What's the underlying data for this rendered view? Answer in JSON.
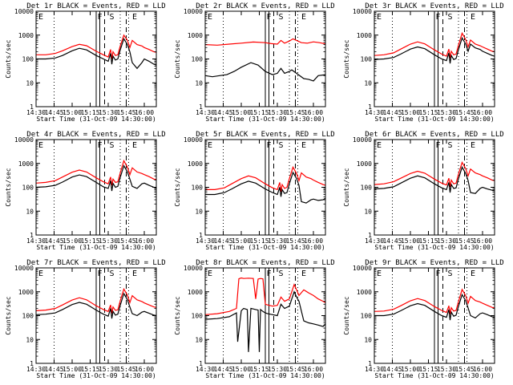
{
  "figure": {
    "x_tick_labels": [
      "14:30",
      "14:45",
      "15:00",
      "15:15",
      "15:30",
      "15:45",
      "16:00"
    ],
    "y_tick_labels": [
      "1",
      "10",
      "100",
      "1000",
      "10000"
    ],
    "xlabel": "Start Time (31-Oct-09 14:30:00)",
    "ylabel": "Counts/sec",
    "marker_labels": [
      "E",
      "F",
      "S",
      "E"
    ],
    "colors": {
      "events": "#000000",
      "lld": "#ff0000"
    }
  },
  "chart_data": [
    {
      "type": "line",
      "title": "Det 1r BLACK = Events, RED = LLD",
      "ylim": [
        1,
        10000
      ],
      "yscale": "log",
      "xlim_min": [
        0,
        100
      ],
      "series": [
        {
          "name": "LLD",
          "x": [
            0,
            8,
            16,
            22,
            30,
            36,
            42,
            50,
            56,
            60,
            62,
            63,
            64,
            66,
            68,
            70,
            73,
            76,
            78,
            80,
            84,
            88,
            90,
            94,
            98,
            100
          ],
          "values": [
            150,
            150,
            170,
            220,
            330,
            410,
            360,
            210,
            150,
            120,
            250,
            100,
            200,
            140,
            150,
            350,
            1000,
            600,
            300,
            600,
            400,
            350,
            300,
            250,
            200,
            190
          ]
        },
        {
          "name": "Events",
          "x": [
            0,
            8,
            16,
            22,
            30,
            36,
            42,
            50,
            56,
            60,
            62,
            63,
            64,
            66,
            68,
            70,
            73,
            76,
            78,
            80,
            84,
            88,
            90,
            94,
            98,
            100
          ],
          "values": [
            100,
            100,
            110,
            140,
            220,
            280,
            240,
            140,
            100,
            80,
            170,
            60,
            130,
            90,
            100,
            240,
            700,
            400,
            200,
            70,
            40,
            70,
            100,
            80,
            60,
            55
          ]
        }
      ]
    },
    {
      "type": "line",
      "title": "Det 2r BLACK = Events, RED = LLD",
      "ylim": [
        1,
        10000
      ],
      "yscale": "log",
      "xlim_min": [
        0,
        100
      ],
      "series": [
        {
          "name": "LLD",
          "x": [
            0,
            10,
            20,
            30,
            40,
            50,
            55,
            60,
            63,
            66,
            70,
            73,
            76,
            80,
            85,
            90,
            95,
            100
          ],
          "values": [
            400,
            380,
            420,
            460,
            510,
            480,
            440,
            420,
            600,
            460,
            560,
            700,
            600,
            480,
            460,
            520,
            480,
            430
          ]
        },
        {
          "name": "Events",
          "x": [
            0,
            6,
            12,
            18,
            24,
            30,
            38,
            44,
            50,
            56,
            60,
            63,
            66,
            70,
            72,
            82,
            86,
            90,
            94,
            100
          ],
          "values": [
            20,
            18,
            20,
            22,
            30,
            45,
            70,
            55,
            30,
            22,
            25,
            40,
            25,
            30,
            35,
            15,
            14,
            12,
            20,
            22
          ]
        }
      ]
    },
    {
      "type": "line",
      "title": "Det 3r BLACK = Events, RED = LLD",
      "ylim": [
        1,
        10000
      ],
      "yscale": "log",
      "xlim_min": [
        0,
        100
      ],
      "series": [
        {
          "name": "LLD",
          "x": [
            0,
            8,
            16,
            22,
            30,
            36,
            42,
            50,
            56,
            60,
            62,
            63,
            64,
            66,
            68,
            70,
            73,
            76,
            78,
            80,
            84,
            88,
            90,
            94,
            98,
            100
          ],
          "values": [
            140,
            150,
            180,
            260,
            420,
            520,
            430,
            240,
            160,
            130,
            260,
            110,
            210,
            150,
            160,
            380,
            1200,
            650,
            320,
            620,
            420,
            360,
            320,
            260,
            210,
            200
          ]
        },
        {
          "name": "Events",
          "x": [
            0,
            8,
            16,
            22,
            30,
            36,
            42,
            50,
            56,
            60,
            62,
            63,
            64,
            66,
            68,
            70,
            73,
            76,
            78,
            80,
            84,
            88,
            90,
            94,
            98,
            100
          ],
          "values": [
            95,
            100,
            115,
            160,
            260,
            320,
            270,
            150,
            100,
            85,
            180,
            65,
            140,
            95,
            105,
            250,
            760,
            420,
            210,
            420,
            290,
            250,
            210,
            170,
            140,
            130
          ]
        }
      ]
    },
    {
      "type": "line",
      "title": "Det 4r BLACK = Events, RED = LLD",
      "ylim": [
        1,
        10000
      ],
      "yscale": "log",
      "xlim_min": [
        0,
        100
      ],
      "series": [
        {
          "name": "LLD",
          "x": [
            0,
            8,
            16,
            22,
            30,
            36,
            42,
            50,
            56,
            60,
            62,
            63,
            64,
            66,
            68,
            70,
            73,
            76,
            78,
            80,
            84,
            88,
            90,
            94,
            98,
            100
          ],
          "values": [
            150,
            160,
            190,
            270,
            430,
            530,
            440,
            250,
            170,
            140,
            270,
            120,
            220,
            160,
            170,
            400,
            1300,
            700,
            340,
            650,
            440,
            380,
            340,
            280,
            220,
            210
          ]
        },
        {
          "name": "Events",
          "x": [
            0,
            8,
            16,
            22,
            30,
            36,
            42,
            50,
            56,
            60,
            62,
            63,
            64,
            66,
            68,
            70,
            73,
            76,
            78,
            80,
            84,
            88,
            90,
            94,
            98,
            100
          ],
          "values": [
            100,
            105,
            120,
            165,
            270,
            330,
            280,
            160,
            105,
            90,
            190,
            70,
            145,
            100,
            110,
            260,
            800,
            440,
            220,
            110,
            90,
            140,
            150,
            120,
            100,
            95
          ]
        }
      ]
    },
    {
      "type": "line",
      "title": "Det 5r BLACK = Events, RED = LLD",
      "ylim": [
        1,
        10000
      ],
      "yscale": "log",
      "xlim_min": [
        0,
        100
      ],
      "series": [
        {
          "name": "LLD",
          "x": [
            0,
            8,
            16,
            22,
            30,
            36,
            42,
            50,
            56,
            60,
            62,
            63,
            64,
            66,
            68,
            70,
            73,
            76,
            78,
            80,
            84,
            88,
            90,
            94,
            98,
            100
          ],
          "values": [
            80,
            80,
            95,
            140,
            230,
            300,
            250,
            140,
            95,
            80,
            160,
            65,
            130,
            90,
            100,
            230,
            700,
            380,
            190,
            400,
            270,
            230,
            200,
            160,
            130,
            120
          ]
        },
        {
          "name": "Events",
          "x": [
            0,
            8,
            16,
            22,
            30,
            36,
            42,
            50,
            56,
            60,
            62,
            63,
            64,
            66,
            68,
            70,
            73,
            76,
            78,
            80,
            84,
            88,
            90,
            94,
            98,
            100
          ],
          "values": [
            50,
            50,
            60,
            85,
            140,
            180,
            150,
            85,
            60,
            50,
            100,
            40,
            80,
            55,
            60,
            140,
            420,
            230,
            120,
            25,
            22,
            30,
            32,
            28,
            30,
            35
          ]
        }
      ]
    },
    {
      "type": "line",
      "title": "Det 6r BLACK = Events, RED = LLD",
      "ylim": [
        1,
        10000
      ],
      "yscale": "log",
      "xlim_min": [
        0,
        100
      ],
      "series": [
        {
          "name": "LLD",
          "x": [
            0,
            8,
            16,
            22,
            30,
            36,
            42,
            50,
            56,
            60,
            62,
            63,
            64,
            66,
            68,
            70,
            73,
            76,
            78,
            80,
            84,
            88,
            90,
            94,
            98,
            100
          ],
          "values": [
            130,
            140,
            170,
            240,
            380,
            470,
            390,
            220,
            150,
            125,
            240,
            105,
            200,
            140,
            150,
            360,
            1100,
            600,
            300,
            580,
            400,
            340,
            300,
            250,
            200,
            190
          ]
        },
        {
          "name": "Events",
          "x": [
            0,
            8,
            16,
            22,
            30,
            36,
            42,
            50,
            56,
            60,
            62,
            63,
            64,
            66,
            68,
            70,
            73,
            76,
            78,
            80,
            84,
            88,
            90,
            94,
            98,
            100
          ],
          "values": [
            85,
            90,
            105,
            150,
            240,
            300,
            250,
            140,
            95,
            80,
            160,
            60,
            130,
            90,
            95,
            230,
            700,
            380,
            190,
            60,
            55,
            90,
            100,
            85,
            75,
            70
          ]
        }
      ]
    },
    {
      "type": "line",
      "title": "Det 7r BLACK = Events, RED = LLD",
      "ylim": [
        1,
        10000
      ],
      "yscale": "log",
      "xlim_min": [
        0,
        100
      ],
      "series": [
        {
          "name": "LLD",
          "x": [
            0,
            8,
            16,
            22,
            30,
            36,
            42,
            50,
            56,
            60,
            62,
            63,
            64,
            66,
            68,
            70,
            73,
            76,
            78,
            80,
            84,
            88,
            90,
            94,
            98,
            100
          ],
          "values": [
            160,
            170,
            200,
            280,
            450,
            560,
            460,
            260,
            180,
            150,
            280,
            125,
            230,
            165,
            175,
            420,
            1300,
            720,
            350,
            680,
            460,
            390,
            340,
            280,
            230,
            220
          ]
        },
        {
          "name": "Events",
          "x": [
            0,
            8,
            16,
            22,
            30,
            36,
            42,
            50,
            56,
            60,
            62,
            63,
            64,
            66,
            68,
            70,
            73,
            76,
            78,
            80,
            84,
            88,
            90,
            94,
            98,
            100
          ],
          "values": [
            110,
            115,
            130,
            180,
            290,
            360,
            300,
            170,
            115,
            95,
            200,
            75,
            150,
            105,
            115,
            270,
            840,
            460,
            230,
            120,
            100,
            140,
            150,
            125,
            105,
            100
          ]
        }
      ]
    },
    {
      "type": "line",
      "title": "Det 8r BLACK = Events, RED = LLD",
      "ylim": [
        1,
        10000
      ],
      "yscale": "log",
      "xlim_min": [
        0,
        100
      ],
      "series": [
        {
          "name": "LLD",
          "x": [
            0,
            10,
            20,
            26,
            28,
            30,
            32,
            36,
            40,
            42,
            44,
            46,
            48,
            50,
            52,
            56,
            60,
            63,
            66,
            70,
            74,
            76,
            78,
            82,
            86,
            90,
            94,
            98,
            100
          ],
          "values": [
            110,
            120,
            150,
            200,
            3500,
            3800,
            3600,
            3700,
            3600,
            500,
            3400,
            3600,
            3500,
            300,
            280,
            250,
            270,
            600,
            400,
            500,
            2000,
            1200,
            700,
            1200,
            900,
            700,
            500,
            400,
            350
          ]
        },
        {
          "name": "Events",
          "x": [
            0,
            10,
            20,
            26,
            27,
            30,
            32,
            35,
            36,
            38,
            40,
            42,
            44,
            45,
            46,
            48,
            50,
            52,
            56,
            60,
            63,
            66,
            70,
            74,
            76,
            78,
            82,
            86,
            90,
            94,
            98,
            100
          ],
          "values": [
            70,
            75,
            90,
            130,
            8,
            160,
            200,
            180,
            3,
            200,
            190,
            180,
            170,
            3,
            180,
            150,
            130,
            120,
            110,
            100,
            300,
            200,
            250,
            1000,
            600,
            400,
            60,
            50,
            45,
            40,
            35,
            45
          ]
        }
      ]
    },
    {
      "type": "line",
      "title": "Det 9r BLACK = Events, RED = LLD",
      "ylim": [
        1,
        10000
      ],
      "yscale": "log",
      "xlim_min": [
        0,
        100
      ],
      "series": [
        {
          "name": "LLD",
          "x": [
            0,
            8,
            16,
            22,
            30,
            36,
            42,
            50,
            56,
            60,
            62,
            63,
            64,
            66,
            68,
            70,
            73,
            76,
            78,
            80,
            84,
            88,
            90,
            94,
            98,
            100
          ],
          "values": [
            150,
            155,
            185,
            260,
            420,
            520,
            430,
            240,
            165,
            135,
            260,
            115,
            215,
            155,
            165,
            390,
            1250,
            680,
            330,
            640,
            430,
            370,
            330,
            270,
            220,
            210
          ]
        },
        {
          "name": "Events",
          "x": [
            0,
            8,
            16,
            22,
            30,
            36,
            42,
            50,
            56,
            60,
            62,
            63,
            64,
            66,
            68,
            70,
            73,
            76,
            78,
            80,
            84,
            88,
            90,
            94,
            98,
            100
          ],
          "values": [
            100,
            100,
            115,
            160,
            260,
            320,
            270,
            150,
            100,
            85,
            180,
            65,
            140,
            95,
            105,
            250,
            760,
            420,
            210,
            100,
            80,
            120,
            130,
            110,
            90,
            85
          ]
        }
      ]
    }
  ]
}
